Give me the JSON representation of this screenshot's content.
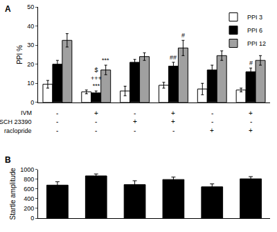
{
  "chart_data": [
    {
      "type": "bar",
      "title": "A",
      "y_label": "PPI %",
      "categories": [
        null,
        null,
        null,
        null,
        null,
        null
      ],
      "series": [
        {
          "name": "PPI 3",
          "color": "#ffffff",
          "values": [
            9.5,
            5.5,
            6,
            9,
            7,
            6.5
          ],
          "errors": [
            2,
            1,
            2.5,
            1.5,
            3,
            1
          ]
        },
        {
          "name": "PPI 6",
          "color": "#000000",
          "values": [
            20,
            5,
            21,
            19,
            17,
            16
          ],
          "errors": [
            2,
            1,
            1.5,
            2,
            2.5,
            2
          ]
        },
        {
          "name": "PPI 12",
          "color": "#a0a0a0",
          "values": [
            32.5,
            17,
            24,
            28.5,
            24.5,
            22
          ],
          "errors": [
            3.5,
            2.5,
            2,
            4,
            2.5,
            2.5
          ]
        }
      ],
      "significance": [
        {
          "category": 1,
          "series": "PPI 6",
          "lines": [
            "$",
            "+++",
            "***"
          ]
        },
        {
          "category": 1,
          "series": "PPI 12",
          "lines": [
            "***"
          ]
        },
        {
          "category": 3,
          "series": "PPI 6",
          "lines": [
            "##"
          ]
        },
        {
          "category": 3,
          "series": "PPI 12",
          "lines": [
            "#"
          ]
        },
        {
          "category": 5,
          "series": "PPI 6",
          "lines": [
            "#"
          ]
        }
      ],
      "treatments": [
        {
          "label": "IVM",
          "values": [
            "-",
            "+",
            "-",
            "+",
            "-",
            "+"
          ]
        },
        {
          "label": "SCH 23390",
          "values": [
            "-",
            "-",
            "+",
            "+",
            "-",
            "-"
          ]
        },
        {
          "label": "raclopride",
          "values": [
            "-",
            "-",
            "-",
            "-",
            "+",
            "+"
          ]
        }
      ],
      "ylim": [
        0,
        50
      ],
      "yticks": [
        0,
        10,
        20,
        30,
        40,
        50
      ],
      "grid": false,
      "legend": "top right",
      "tick_labels": "y"
    },
    {
      "type": "bar",
      "title": "B",
      "y_label": "Startle amplitude",
      "categories": [
        null,
        null,
        null,
        null,
        null,
        null
      ],
      "values": [
        680,
        870,
        690,
        795,
        645,
        810
      ],
      "errors": [
        70,
        40,
        80,
        50,
        60,
        45
      ],
      "color": "#000000",
      "ylim": [
        0,
        1000
      ],
      "yticks": [
        0,
        200,
        400,
        600,
        800,
        1000
      ],
      "grid": false,
      "tick_labels": "y"
    }
  ]
}
